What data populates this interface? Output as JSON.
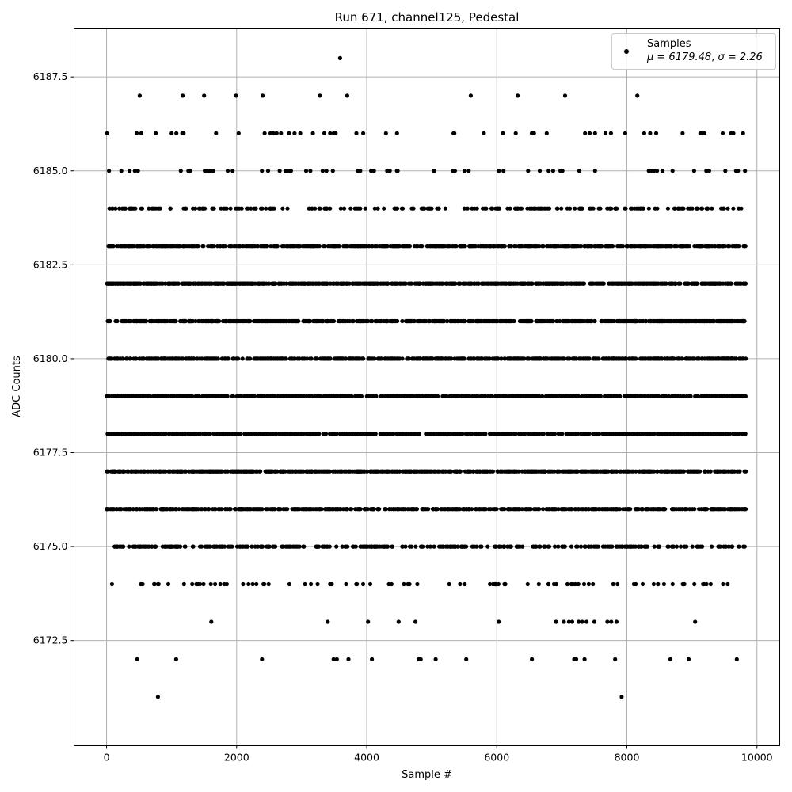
{
  "chart_data": {
    "type": "scatter",
    "title": "Run 671, channel125, Pedestal",
    "xlabel": "Sample #",
    "ylabel": "ADC Counts",
    "xlim": [
      -500,
      10350
    ],
    "ylim": [
      6169.7,
      6188.8
    ],
    "x_ticks": [
      0,
      2000,
      4000,
      6000,
      8000,
      10000
    ],
    "x_tick_labels": [
      "0",
      "2000",
      "4000",
      "6000",
      "8000",
      "10000"
    ],
    "y_ticks": [
      6172.5,
      6175.0,
      6177.5,
      6180.0,
      6182.5,
      6185.0,
      6187.5
    ],
    "y_tick_labels": [
      "6172.5",
      "6175.0",
      "6177.5",
      "6180.0",
      "6182.5",
      "6185.0",
      "6187.5"
    ],
    "grid": true,
    "legend_position": "top-right",
    "series": [
      {
        "name": "Samples",
        "color": "#000000",
        "n_samples": 9830,
        "stats_label_mu": "μ = 6179.48",
        "stats_label_sigma": "σ = 2.26",
        "rare_points": [
          {
            "x": 790,
            "y": 6171
          },
          {
            "x": 7920,
            "y": 6171
          },
          {
            "x": 3590,
            "y": 6188
          },
          {
            "x": 470,
            "y": 6172
          },
          {
            "x": 1070,
            "y": 6172
          },
          {
            "x": 2390,
            "y": 6172
          },
          {
            "x": 3490,
            "y": 6172
          },
          {
            "x": 3540,
            "y": 6172
          },
          {
            "x": 3720,
            "y": 6172
          },
          {
            "x": 4080,
            "y": 6172
          },
          {
            "x": 4800,
            "y": 6172
          },
          {
            "x": 4830,
            "y": 6172
          },
          {
            "x": 5060,
            "y": 6172
          },
          {
            "x": 5530,
            "y": 6172
          },
          {
            "x": 6540,
            "y": 6172
          },
          {
            "x": 7190,
            "y": 6172
          },
          {
            "x": 7220,
            "y": 6172
          },
          {
            "x": 7350,
            "y": 6172
          },
          {
            "x": 7820,
            "y": 6172
          },
          {
            "x": 8670,
            "y": 6172
          },
          {
            "x": 8950,
            "y": 6172
          },
          {
            "x": 9690,
            "y": 6172
          },
          {
            "x": 1610,
            "y": 6173
          },
          {
            "x": 3400,
            "y": 6173
          },
          {
            "x": 4020,
            "y": 6173
          },
          {
            "x": 4490,
            "y": 6173
          },
          {
            "x": 4750,
            "y": 6173
          },
          {
            "x": 6030,
            "y": 6173
          },
          {
            "x": 6910,
            "y": 6173
          },
          {
            "x": 7030,
            "y": 6173
          },
          {
            "x": 7110,
            "y": 6173
          },
          {
            "x": 7160,
            "y": 6173
          },
          {
            "x": 7260,
            "y": 6173
          },
          {
            "x": 7310,
            "y": 6173
          },
          {
            "x": 7380,
            "y": 6173
          },
          {
            "x": 7500,
            "y": 6173
          },
          {
            "x": 7700,
            "y": 6173
          },
          {
            "x": 7760,
            "y": 6173
          },
          {
            "x": 7840,
            "y": 6173
          },
          {
            "x": 9050,
            "y": 6173
          },
          {
            "x": 510,
            "y": 6187
          },
          {
            "x": 1170,
            "y": 6187
          },
          {
            "x": 1500,
            "y": 6187
          },
          {
            "x": 1990,
            "y": 6187
          },
          {
            "x": 2400,
            "y": 6187
          },
          {
            "x": 3280,
            "y": 6187
          },
          {
            "x": 3700,
            "y": 6187
          },
          {
            "x": 5600,
            "y": 6187
          },
          {
            "x": 6320,
            "y": 6187
          },
          {
            "x": 7050,
            "y": 6187
          },
          {
            "x": 8160,
            "y": 6187
          }
        ],
        "level_densities": [
          {
            "y": 6174,
            "count": 90
          },
          {
            "y": 6175,
            "count": 320
          },
          {
            "y": 6176,
            "count": 560
          },
          {
            "y": 6177,
            "count": 900
          },
          {
            "y": 6178,
            "count": 1500
          },
          {
            "y": 6179,
            "count": 1500
          },
          {
            "y": 6180,
            "count": 1600
          },
          {
            "y": 6181,
            "count": 1100
          },
          {
            "y": 6182,
            "count": 1500
          },
          {
            "y": 6183,
            "count": 700
          },
          {
            "y": 6184,
            "count": 220
          },
          {
            "y": 6185,
            "count": 70
          },
          {
            "y": 6186,
            "count": 55
          }
        ]
      }
    ]
  }
}
